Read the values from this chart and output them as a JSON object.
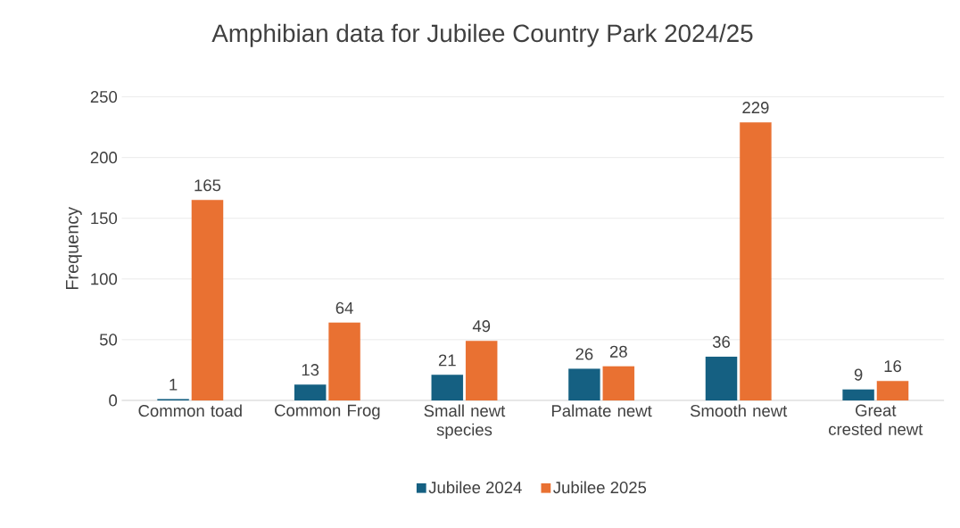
{
  "chart_data": {
    "type": "bar",
    "title": "Amphibian data for Jubilee Country Park 2024/25",
    "ylabel": "Frequency",
    "categories": [
      "Common toad",
      "Common Frog",
      "Small newt species",
      "Palmate newt",
      "Smooth newt",
      "Great crested newt"
    ],
    "series": [
      {
        "name": "Jubilee 2024",
        "color": "#156082",
        "values": [
          1,
          13,
          21,
          26,
          36,
          9
        ]
      },
      {
        "name": "Jubilee 2025",
        "color": "#e97132",
        "values": [
          165,
          64,
          49,
          28,
          229,
          16
        ]
      }
    ],
    "ylim": [
      0,
      250
    ],
    "yticks": [
      0,
      50,
      100,
      150,
      200,
      250
    ],
    "grid": "y",
    "legend": "bottom",
    "data_labels": true
  }
}
